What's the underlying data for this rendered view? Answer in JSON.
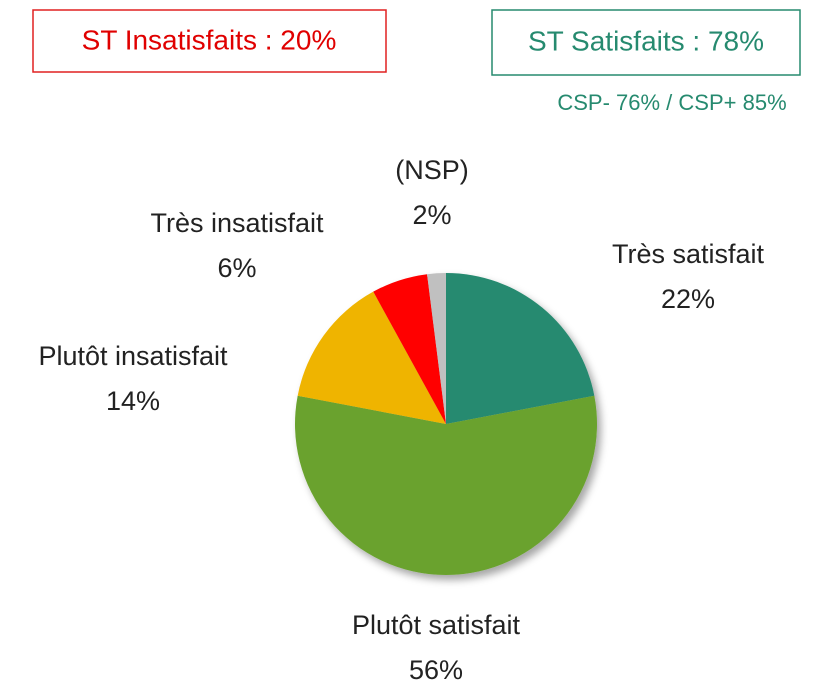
{
  "chart_data": {
    "type": "pie",
    "categories": [
      "Très satisfait",
      "Plutôt satisfait",
      "Plutôt insatisfait",
      "Très insatisfait",
      "(NSP)"
    ],
    "values": [
      22,
      56,
      14,
      6,
      2
    ],
    "value_labels": [
      "22%",
      "56%",
      "14%",
      "6%",
      "2%"
    ],
    "colors": [
      "#268a6f",
      "#6aa22e",
      "#efb400",
      "#ff0000",
      "#c0c0c0"
    ],
    "annotations": [
      "ST Insatisfaits : 20%",
      "ST Satisfaits : 78%",
      "CSP- 76% / CSP+ 85%"
    ]
  }
}
